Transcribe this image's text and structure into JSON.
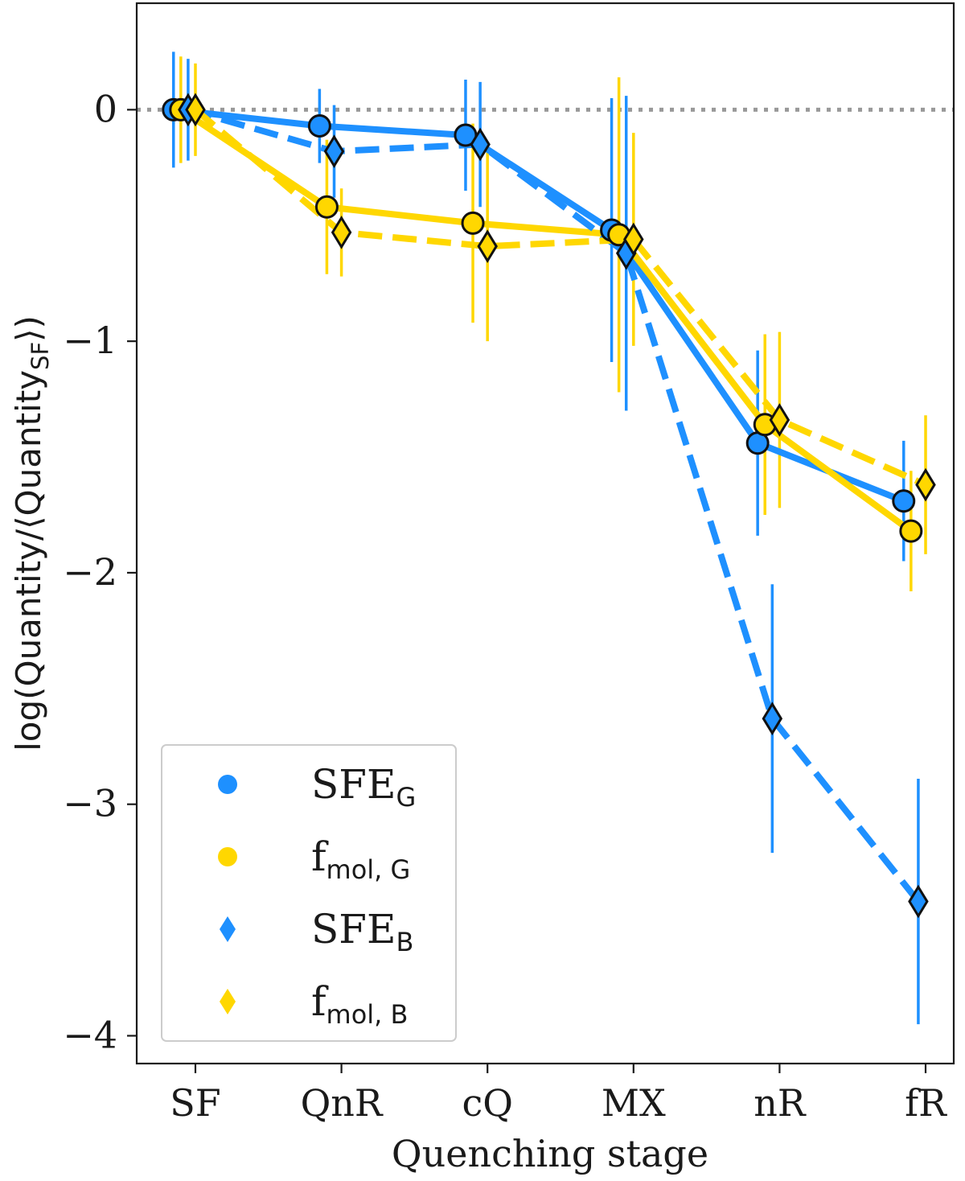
{
  "chart_data": {
    "type": "line",
    "xlabel": "Quenching stage",
    "ylabel": {
      "main": "log(Quantity/⟨Quantity",
      "sub": "SF",
      "close": "⟩)"
    },
    "categories": [
      "SF",
      "QnR",
      "cQ",
      "MX",
      "nR",
      "fR"
    ],
    "ylim": [
      -4.12,
      0.46
    ],
    "yticks": [
      0,
      -1,
      -2,
      -3,
      -4
    ],
    "ytick_labels": [
      "0",
      "−1",
      "−2",
      "−3",
      "−4"
    ],
    "reference_line": {
      "y": 0,
      "style": "dotted"
    },
    "series": [
      {
        "name": "SFE_G",
        "label_main": "SFE",
        "label_sub": "G",
        "color": "#1e90ff",
        "linestyle": "solid",
        "marker": "circle",
        "offset": -0.15,
        "values": [
          0,
          -0.07,
          -0.11,
          -0.52,
          -1.44,
          -1.69
        ],
        "err": [
          0.25,
          0.16,
          0.24,
          0.57,
          0.4,
          0.26
        ]
      },
      {
        "name": "f_mol,G",
        "label_main": "f",
        "label_sub": "mol, G",
        "color": "#ffd700",
        "linestyle": "solid",
        "marker": "circle",
        "offset": -0.1,
        "values": [
          0,
          -0.42,
          -0.49,
          -0.54,
          -1.36,
          -1.82
        ],
        "err": [
          0.23,
          0.29,
          0.43,
          0.68,
          0.39,
          0.26
        ]
      },
      {
        "name": "SFE_B",
        "label_main": "SFE",
        "label_sub": "B",
        "color": "#1e90ff",
        "linestyle": "dashed",
        "marker": "diamond",
        "offset": -0.05,
        "values": [
          0,
          -0.18,
          -0.15,
          -0.62,
          -2.63,
          -3.42
        ],
        "err": [
          0.22,
          0.2,
          0.27,
          0.68,
          0.58,
          0.53
        ]
      },
      {
        "name": "f_mol,B",
        "label_main": "f",
        "label_sub": "mol, B",
        "color": "#ffd700",
        "linestyle": "dashed",
        "marker": "diamond",
        "offset": 0,
        "values": [
          0,
          -0.53,
          -0.59,
          -0.56,
          -1.34,
          -1.62
        ],
        "err": [
          0.2,
          0.19,
          0.41,
          0.46,
          0.38,
          0.3
        ]
      }
    ],
    "legend": {
      "location": "lower-left"
    }
  }
}
